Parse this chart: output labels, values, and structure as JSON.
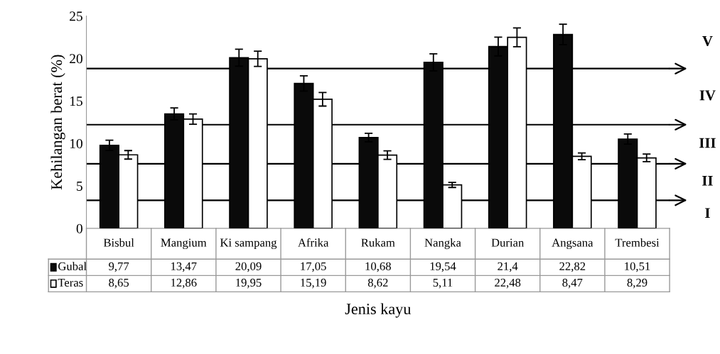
{
  "chart_data": {
    "type": "bar",
    "ylabel": "Kehilangan berat (%)",
    "xlabel": "Jenis kayu",
    "categories": [
      "Bisbul",
      "Mangium",
      "Ki sampang",
      "Afrika",
      "Rukam",
      "Nangka",
      "Durian",
      "Angsana",
      "Trembesi"
    ],
    "series": [
      {
        "name": "Gubal",
        "color": "#0a0a0a",
        "values": [
          9.77,
          13.47,
          20.09,
          17.05,
          10.68,
          19.54,
          21.4,
          22.82,
          10.51
        ],
        "errors": [
          0.6,
          0.7,
          1.0,
          0.9,
          0.5,
          1.0,
          1.1,
          1.2,
          0.6
        ],
        "value_labels": [
          "9,77",
          "13,47",
          "20,09",
          "17,05",
          "10,68",
          "19,54",
          "21,4",
          "22,82",
          "10,51"
        ]
      },
      {
        "name": "Teras",
        "color": "#ffffff",
        "values": [
          8.65,
          12.86,
          19.95,
          15.19,
          8.62,
          5.11,
          22.48,
          8.47,
          8.29
        ],
        "errors": [
          0.5,
          0.6,
          0.9,
          0.8,
          0.5,
          0.3,
          1.1,
          0.4,
          0.45
        ],
        "value_labels": [
          "8,65",
          "12,86",
          "19,95",
          "15,19",
          "8,62",
          "5,11",
          "22,48",
          "8,47",
          "8,29"
        ]
      }
    ],
    "ylim": [
      0,
      25
    ],
    "yticks": [
      0,
      5,
      10,
      15,
      20,
      25
    ],
    "ref_lines": [
      {
        "axis": "y",
        "value": 3.3,
        "color": "#000000"
      },
      {
        "axis": "y",
        "value": 7.6,
        "color": "#000000"
      },
      {
        "axis": "y",
        "value": 12.2,
        "color": "#000000"
      },
      {
        "axis": "y",
        "value": 18.8,
        "color": "#000000"
      }
    ],
    "annotations": [
      "V",
      "IV",
      "III",
      "II",
      "I"
    ],
    "grid": false,
    "legend": "bottom left"
  }
}
